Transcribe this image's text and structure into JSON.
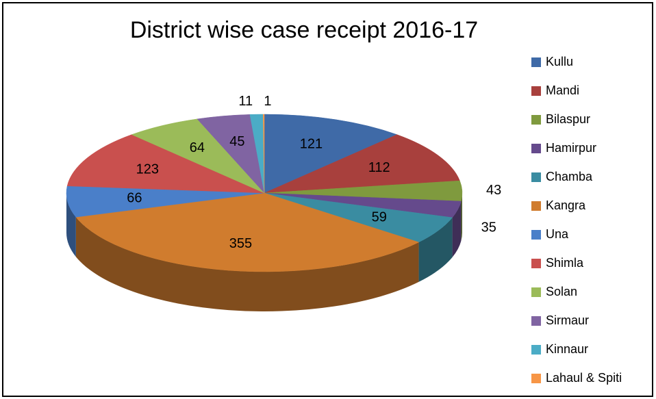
{
  "chart_data": {
    "type": "pie3d",
    "title": "District wise case receipt 2016-17",
    "categories": [
      "Kullu",
      "Mandi",
      "Bilaspur",
      "Hamirpur",
      "Chamba",
      "Kangra",
      "Una",
      "Shimla",
      "Solan",
      "Sirmaur",
      "Kinnaur",
      "Lahaul & Spiti"
    ],
    "values": [
      121,
      112,
      43,
      35,
      59,
      355,
      66,
      123,
      64,
      45,
      11,
      1
    ],
    "colors": [
      "#3f6aa7",
      "#a8403d",
      "#7f9a3e",
      "#654a8c",
      "#3a8ca1",
      "#d07c2e",
      "#4a7fc9",
      "#c9504e",
      "#9bbb59",
      "#8064a2",
      "#4bacc6",
      "#f79646"
    ],
    "legend": "right"
  }
}
